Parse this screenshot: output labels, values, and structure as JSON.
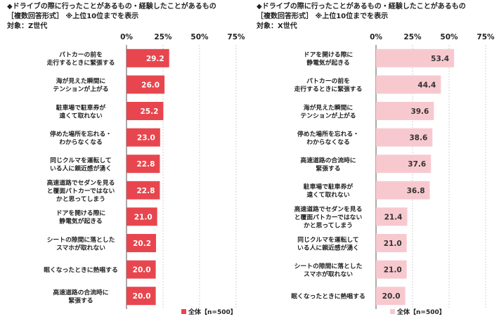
{
  "chart_data": [
    {
      "type": "bar",
      "orientation": "horizontal",
      "title": "◆ドライブの際に行ったことがあるもの・経験したことがあるもの",
      "subtitle": "［複数回答形式］ ※上位10位までを表示",
      "target": "対象：Z世代",
      "color": "#e8464e",
      "xlim": [
        0,
        75
      ],
      "ticks": [
        "0%",
        "25%",
        "50%",
        "75%"
      ],
      "grid": true,
      "legend": "全体【n=500】",
      "legend_position": "bottom-right",
      "categories": [
        [
          "パトカーの前を",
          "走行するときに緊張する"
        ],
        [
          "海が見えた瞬間に",
          "テンションが上がる"
        ],
        [
          "駐車場で駐車券が",
          "遠くて取れない"
        ],
        [
          "停めた場所を忘れる・",
          "わからなくなる"
        ],
        [
          "同じクルマを運転して",
          "いる人に親近感が湧く"
        ],
        [
          "高速道路でセダンを見る",
          "と覆面パトカーではない",
          "かと思ってしまう"
        ],
        [
          "ドアを開ける際に",
          "静電気が起きる"
        ],
        [
          "シートの隙間に落とした",
          "スマホが取れない"
        ],
        [
          "眠くなったときに熱唱する"
        ],
        [
          "高速道路の合流時に",
          "緊張する"
        ]
      ],
      "values": [
        29.2,
        26.0,
        25.2,
        23.0,
        22.8,
        22.8,
        21.0,
        20.2,
        20.0,
        20.0
      ],
      "labels": [
        "29.2",
        "26.0",
        "25.2",
        "23.0",
        "22.8",
        "22.8",
        "21.0",
        "20.2",
        "20.0",
        "20.0"
      ]
    },
    {
      "type": "bar",
      "orientation": "horizontal",
      "title": "◆ドライブの際に行ったことがあるもの・経験したことがあるもの",
      "subtitle": "［複数回答形式］ ※上位10位までを表示",
      "target": "対象：X世代",
      "color": "#f7c9cf",
      "xlim": [
        0,
        75
      ],
      "ticks": [
        "0%",
        "25%",
        "50%",
        "75%"
      ],
      "grid": true,
      "legend": "全体【n=500】",
      "legend_position": "bottom-right",
      "categories": [
        [
          "ドアを開ける際に",
          "静電気が起きる"
        ],
        [
          "パトカーの前を",
          "走行するときに緊張する"
        ],
        [
          "海が見えた瞬間に",
          "テンションが上がる"
        ],
        [
          "停めた場所を忘れる・",
          "わからなくなる"
        ],
        [
          "高速道路の合流時に",
          "緊張する"
        ],
        [
          "駐車場で駐車券が",
          "遠くて取れない"
        ],
        [
          "高速道路でセダンを見る",
          "と覆面パトカーではない",
          "かと思ってしまう"
        ],
        [
          "同じクルマを運転して",
          "いる人に親近感が湧く"
        ],
        [
          "シートの隙間に落とした",
          "スマホが取れない"
        ],
        [
          "眠くなったときに熱唱する"
        ]
      ],
      "values": [
        53.4,
        44.4,
        39.6,
        38.6,
        37.6,
        36.8,
        21.4,
        21.0,
        21.0,
        20.0
      ],
      "labels": [
        "53.4",
        "44.4",
        "39.6",
        "38.6",
        "37.6",
        "36.8",
        "21.4",
        "21.0",
        "21.0",
        "20.0"
      ]
    }
  ]
}
